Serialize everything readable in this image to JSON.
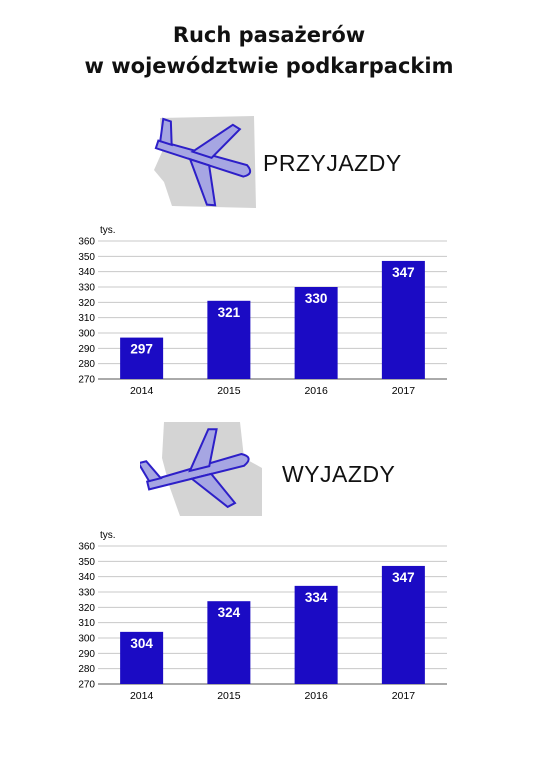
{
  "title": {
    "line1": "Ruch pasażerów",
    "line2": "w województwie podkarpackim"
  },
  "colors": {
    "bar": "#1b0bc4",
    "grid": "#c8c8c8",
    "plane_fill": "#a6a6e2",
    "plane_stroke": "#2d1fc8",
    "plane_bg": "#d4d4d4"
  },
  "sections": [
    {
      "label": "PRZYJAZDY",
      "icon": "arriving-plane-icon"
    },
    {
      "label": "WYJAZDY",
      "icon": "departing-plane-icon"
    }
  ],
  "chart_data": [
    {
      "type": "bar",
      "title": "",
      "ylabel": "tys.",
      "xlabel": "",
      "categories": [
        "2014",
        "2015",
        "2016",
        "2017"
      ],
      "values": [
        297,
        321,
        330,
        347
      ],
      "ylim": [
        270,
        360
      ],
      "yticks": [
        270,
        280,
        290,
        300,
        310,
        320,
        330,
        340,
        350,
        360
      ],
      "grid": true,
      "data_labels": true
    },
    {
      "type": "bar",
      "title": "",
      "ylabel": "tys.",
      "xlabel": "",
      "categories": [
        "2014",
        "2015",
        "2016",
        "2017"
      ],
      "values": [
        304,
        324,
        334,
        347
      ],
      "ylim": [
        270,
        360
      ],
      "yticks": [
        270,
        280,
        290,
        300,
        310,
        320,
        330,
        340,
        350,
        360
      ],
      "grid": true,
      "data_labels": true
    }
  ]
}
